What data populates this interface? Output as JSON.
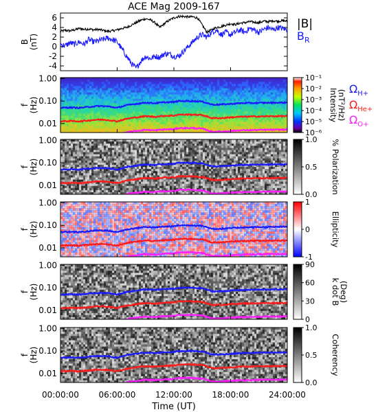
{
  "figure": {
    "title": "ACE Mag 2009-167",
    "xlabel": "Time (UT)",
    "x_ticks": [
      "00:00:00",
      "06:00:00",
      "12:00:00",
      "18:00:00",
      "24:00:00"
    ],
    "x_tick_hours": [
      0,
      6,
      12,
      18,
      24
    ]
  },
  "legend": {
    "btotal": "|B|",
    "br": "B",
    "br_sub": "R",
    "omega_h": "Ω",
    "omega_h_sub": "H+",
    "omega_he": "Ω",
    "omega_he_sub": "He+",
    "omega_o": "Ω",
    "omega_o_sub": "O+",
    "colors": {
      "btotal": "#000000",
      "br": "#1a1aff",
      "omega_h": "#1a1aff",
      "omega_he": "#ff1a1a",
      "omega_o": "#ff1aff"
    }
  },
  "chart_data": [
    {
      "type": "line",
      "title": "ACE Mag 2009-167",
      "ylabel_main": "B",
      "ylabel_unit": "(nT)",
      "xlabel": "Time (UT)",
      "ylim": [
        -5,
        7
      ],
      "y_ticks": [
        "6",
        "4",
        "2",
        "0",
        "-2",
        "-4"
      ],
      "y_tick_values": [
        6,
        4,
        2,
        0,
        -2,
        -4
      ],
      "series": [
        {
          "name": "|B|",
          "color": "#000000",
          "x": [
            0,
            0.5,
            1,
            1.5,
            2,
            2.5,
            3,
            3.5,
            4,
            4.5,
            5,
            5.5,
            6,
            6.5,
            7,
            7.5,
            8,
            8.5,
            9,
            9.5,
            10,
            10.5,
            11,
            11.5,
            12,
            12.5,
            13,
            13.5,
            14,
            14.5,
            15,
            15.5,
            16,
            16.5,
            17,
            17.5,
            18,
            18.5,
            19,
            19.5,
            20,
            20.5,
            21,
            21.5,
            22,
            22.5,
            23,
            23.5,
            24
          ],
          "values": [
            3.2,
            3.4,
            3.3,
            3.5,
            3.8,
            3.6,
            3.7,
            3.5,
            3.6,
            3.4,
            3.2,
            3.3,
            3.5,
            3.8,
            4.0,
            4.5,
            5.0,
            5.5,
            5.8,
            5.6,
            5.0,
            4.0,
            4.8,
            5.5,
            6.0,
            6.3,
            6.3,
            6.2,
            6.2,
            6.0,
            4.5,
            3.0,
            3.5,
            4.0,
            4.2,
            4.5,
            4.8,
            4.6,
            4.9,
            5.0,
            5.2,
            5.1,
            5.0,
            5.3,
            5.2,
            5.4,
            5.3,
            5.4,
            5.3
          ]
        },
        {
          "name": "BR",
          "color": "#1a1aff",
          "x": [
            0,
            0.5,
            1,
            1.5,
            2,
            2.5,
            3,
            3.5,
            4,
            4.5,
            5,
            5.5,
            6,
            6.5,
            7,
            7.5,
            8,
            8.5,
            9,
            9.5,
            10,
            10.5,
            11,
            11.5,
            12,
            12.5,
            13,
            13.5,
            14,
            14.5,
            15,
            15.5,
            16,
            16.5,
            17,
            17.5,
            18,
            18.5,
            19,
            19.5,
            20,
            20.5,
            21,
            21.5,
            22,
            22.5,
            23,
            23.5,
            24
          ],
          "values": [
            0.5,
            0.2,
            0.8,
            0.5,
            1.0,
            0.5,
            1.5,
            1.0,
            1.2,
            1.5,
            1.8,
            1.5,
            1.0,
            -0.5,
            -2.0,
            -3.5,
            -4.5,
            -3.0,
            -2.0,
            -2.5,
            -2.0,
            -2.2,
            -1.5,
            -1.5,
            -2.0,
            -2.0,
            -1.0,
            0.0,
            1.0,
            2.0,
            2.5,
            2.0,
            3.0,
            3.5,
            2.5,
            3.0,
            2.5,
            3.0,
            3.5,
            3.0,
            3.8,
            3.5,
            3.0,
            3.6,
            4.0,
            3.5,
            4.0,
            3.8,
            3.5
          ]
        }
      ]
    },
    {
      "type": "heatmap",
      "name": "intensity",
      "ylabel_main": "f",
      "ylabel_unit": "(Hz)",
      "scale": "log",
      "y_ticks": [
        "1.00",
        "0.10",
        "0.01"
      ],
      "y_tick_values": [
        1.0,
        0.1,
        0.01
      ],
      "colorbar_label": "Intensity",
      "colorbar_unit": "(nT²/Hz)",
      "colorbar_ticks": [
        "10⁻¹",
        "10⁻²",
        "10⁻³",
        "10⁻⁴",
        "10⁻⁵",
        "10⁻⁶"
      ],
      "colorbar_values": [
        0.1,
        0.01,
        0.001,
        0.0001,
        1e-05,
        1e-06
      ]
    },
    {
      "type": "heatmap",
      "name": "polarization",
      "ylabel_main": "f",
      "ylabel_unit": "(Hz)",
      "y_ticks": [
        "1.00",
        "0.10",
        "0.01"
      ],
      "y_tick_values": [
        1.0,
        0.1,
        0.01
      ],
      "colorbar_label": "% Polarization",
      "colorbar_ticks": [
        "1.0",
        "0.5",
        "0.0"
      ],
      "colorbar_values": [
        1.0,
        0.5,
        0.0
      ]
    },
    {
      "type": "heatmap",
      "name": "ellipticity",
      "ylabel_main": "f",
      "ylabel_unit": "(Hz)",
      "y_ticks": [
        "1.00",
        "0.10",
        "0.01"
      ],
      "y_tick_values": [
        1.0,
        0.1,
        0.01
      ],
      "colorbar_label": "Ellipticity",
      "colorbar_ticks": [
        "1",
        "0",
        "-1"
      ],
      "colorbar_values": [
        1,
        0,
        -1
      ]
    },
    {
      "type": "heatmap",
      "name": "kdotb",
      "ylabel_main": "f",
      "ylabel_unit": "(Hz)",
      "y_ticks": [
        "1.00",
        "0.10",
        "0.01"
      ],
      "y_tick_values": [
        1.0,
        0.1,
        0.01
      ],
      "colorbar_label": "k dot B",
      "colorbar_unit": "(Deg)",
      "colorbar_ticks": [
        "90",
        "60",
        "30",
        "0"
      ],
      "colorbar_values": [
        90,
        60,
        30,
        0
      ]
    },
    {
      "type": "heatmap",
      "name": "coherency",
      "ylabel_main": "f",
      "ylabel_unit": "(Hz)",
      "y_ticks": [
        "1.00",
        "0.10",
        "0.01"
      ],
      "y_tick_values": [
        1.0,
        0.1,
        0.01
      ],
      "colorbar_label": "Coherency",
      "colorbar_ticks": [
        "1.0",
        "0.5",
        "0.0"
      ],
      "colorbar_values": [
        1.0,
        0.5,
        0.0
      ]
    },
    {
      "type": "line",
      "name": "gyrofrequency-overlays",
      "ylim": [
        0.004,
        1.1
      ],
      "scale": "log",
      "series": [
        {
          "name": "ΩH+",
          "color": "#1a1aff",
          "x": [
            0,
            1,
            2,
            3,
            4,
            5,
            6,
            7,
            8,
            9,
            10,
            11,
            12,
            12.5,
            13,
            14,
            15,
            16,
            17,
            18,
            19,
            20,
            21,
            22,
            23,
            24
          ],
          "values": [
            0.05,
            0.052,
            0.05,
            0.055,
            0.06,
            0.058,
            0.05,
            0.065,
            0.075,
            0.085,
            0.08,
            0.088,
            0.09,
            0.1,
            0.1,
            0.1,
            0.095,
            0.07,
            0.07,
            0.075,
            0.08,
            0.082,
            0.083,
            0.084,
            0.085,
            0.086
          ]
        },
        {
          "name": "ΩHe+",
          "color": "#ff1a1a",
          "x": [
            0,
            1,
            2,
            3,
            4,
            5,
            6,
            7,
            8,
            9,
            10,
            11,
            12,
            12.5,
            13,
            14,
            15,
            16,
            17,
            18,
            19,
            20,
            21,
            22,
            23,
            24
          ],
          "values": [
            0.0125,
            0.013,
            0.0125,
            0.0138,
            0.015,
            0.0145,
            0.0125,
            0.0163,
            0.0188,
            0.0213,
            0.02,
            0.022,
            0.0225,
            0.025,
            0.025,
            0.025,
            0.0238,
            0.0175,
            0.0175,
            0.0188,
            0.02,
            0.0205,
            0.0208,
            0.021,
            0.0213,
            0.0215
          ]
        },
        {
          "name": "ΩO+",
          "color": "#ff1aff",
          "x": [
            0,
            1,
            2,
            3,
            4,
            5,
            6,
            7,
            8,
            9,
            10,
            11,
            12,
            12.5,
            13,
            14,
            15,
            16,
            17,
            18,
            19,
            20,
            21,
            22,
            23,
            24
          ],
          "values": [
            0.0031,
            0.0033,
            0.0031,
            0.0034,
            0.0038,
            0.0036,
            0.0031,
            0.0041,
            0.0047,
            0.0053,
            0.005,
            0.0055,
            0.0056,
            0.0063,
            0.0063,
            0.0063,
            0.0059,
            0.0044,
            0.0044,
            0.0047,
            0.005,
            0.0051,
            0.0052,
            0.0053,
            0.0053,
            0.0054
          ]
        }
      ]
    }
  ]
}
